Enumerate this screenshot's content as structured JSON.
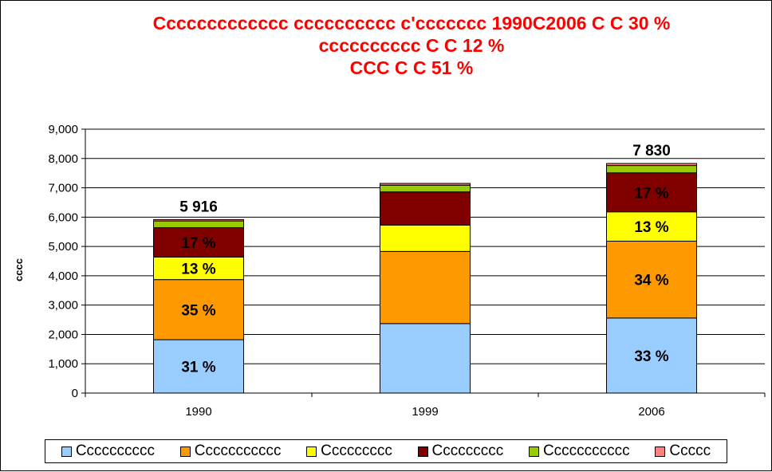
{
  "title_lines": [
    "Ccccccccccccc cccccccccc c'ccccccc 1990C2006 C C 30 %",
    "cccccccccc C C 12 %",
    "CCC C C 51 %"
  ],
  "chart_data": {
    "type": "bar",
    "stacked": true,
    "title": "Ccccccccccccc cccccccccc c'ccccccc 1990C2006 C C 30 % cccccccccc C C 12 % CCC C C 51 %",
    "ylabel": "cccc",
    "xlabel": "",
    "ylim": [
      0,
      9000
    ],
    "yticks": [
      0,
      1000,
      2000,
      3000,
      4000,
      5000,
      6000,
      7000,
      8000,
      9000
    ],
    "ytick_labels": [
      "0",
      "1,000",
      "2,000",
      "3,000",
      "4,000",
      "5,000",
      "6,000",
      "7,000",
      "8,000",
      "9,000"
    ],
    "categories": [
      "1990",
      "1999",
      "2006"
    ],
    "totals_labels": [
      "5 916",
      "",
      "7 830"
    ],
    "grid": true,
    "legend_position": "bottom",
    "series": [
      {
        "name": "Cccccccccc",
        "color": "#99ccff",
        "values": [
          1820,
          2370,
          2560
        ],
        "labels": [
          "31 %",
          "",
          "33 %"
        ]
      },
      {
        "name": "Ccccccccccc",
        "color": "#ff9900",
        "values": [
          2050,
          2460,
          2620
        ],
        "labels": [
          "35 %",
          "",
          "34 %"
        ]
      },
      {
        "name": "Ccccccccc",
        "color": "#ffff00",
        "values": [
          770,
          900,
          1000
        ],
        "labels": [
          "13 %",
          "",
          "13 %"
        ]
      },
      {
        "name": "Ccccccccc",
        "color": "#800000",
        "values": [
          1000,
          1130,
          1330
        ],
        "labels": [
          "17 %",
          "",
          "17 %"
        ]
      },
      {
        "name": "Ccccccccccc",
        "color": "#99cc00",
        "values": [
          230,
          230,
          250
        ],
        "labels": [
          "",
          "",
          ""
        ]
      },
      {
        "name": "Ccccc",
        "color": "#ff8080",
        "values": [
          46,
          60,
          70
        ],
        "labels": [
          "",
          "",
          ""
        ]
      }
    ]
  }
}
